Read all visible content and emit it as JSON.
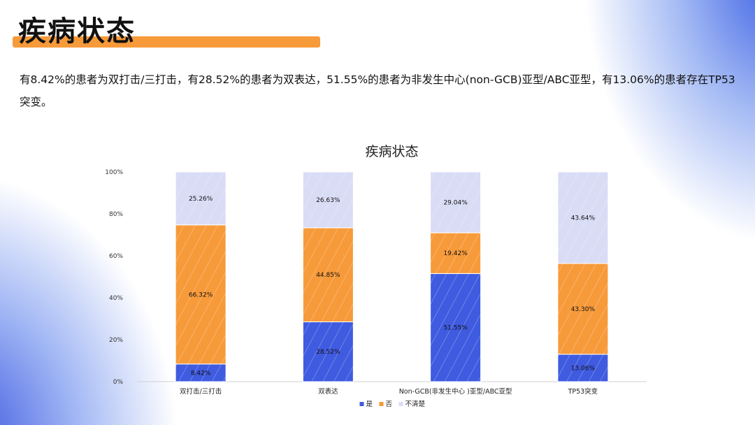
{
  "page": {
    "title": "疾病状态",
    "description": "有8.42%的患者为双打击/三打击，有28.52%的患者为双表达，51.55%的患者为非发生中心(non-GCB)亚型/ABC亚型，有13.06%的患者存在TP53突变。"
  },
  "colors": {
    "yes": "#3f5be0",
    "no": "#f79a3a",
    "unknown": "#d9dcf5"
  },
  "chart_data": {
    "type": "bar",
    "stacked": true,
    "title": "疾病状态",
    "categories": [
      "双打击/三打击",
      "双表达",
      "Non-GCB(非发生中心 )亚型/ABC亚型",
      "TP53突变"
    ],
    "series": [
      {
        "name": "是",
        "values": [
          8.42,
          28.52,
          51.55,
          13.06
        ],
        "labels": [
          "8.42%",
          "28.52%",
          "51.55%",
          "13.06%"
        ]
      },
      {
        "name": "否",
        "values": [
          66.32,
          44.85,
          19.42,
          43.3
        ],
        "labels": [
          "66.32%",
          "44.85%",
          "19.42%",
          "43.30%"
        ]
      },
      {
        "name": "不清楚",
        "values": [
          25.26,
          26.63,
          29.04,
          43.64
        ],
        "labels": [
          "25.26%",
          "26.63%",
          "29.04%",
          "43.64%"
        ]
      }
    ],
    "ylim": [
      0,
      100
    ],
    "yticks": [
      "0%",
      "20%",
      "40%",
      "60%",
      "80%",
      "100%"
    ],
    "legend": "bottom",
    "grid": false
  }
}
